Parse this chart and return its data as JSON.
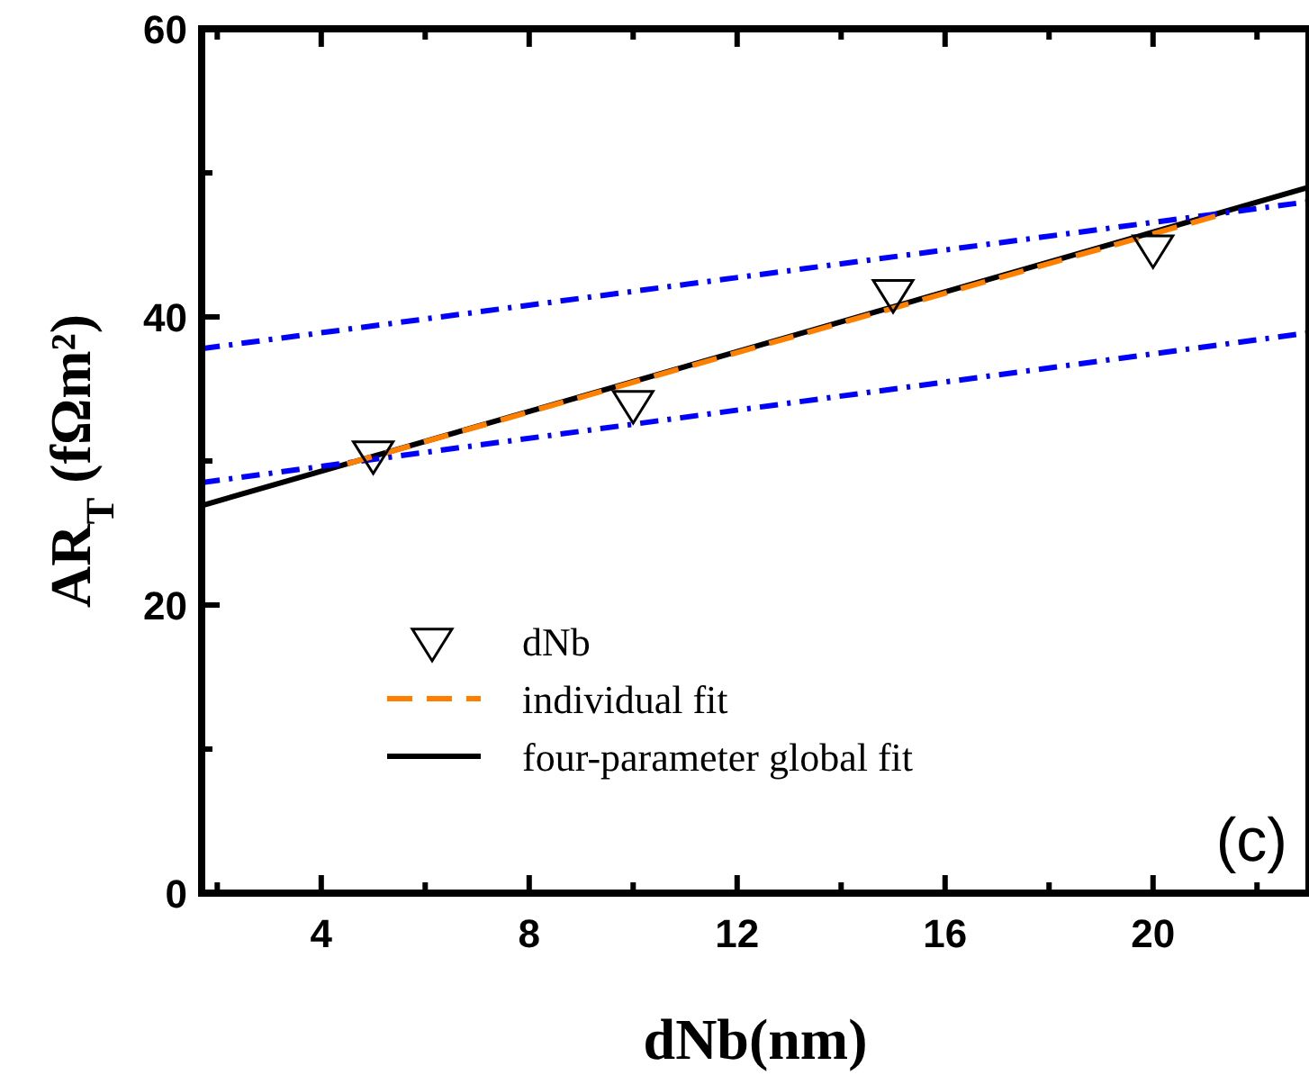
{
  "chart_data": {
    "type": "line",
    "xlabel": "dNb(nm)",
    "ylabel": "AR$_{T}$ (fΩm²)",
    "annotations": [
      "(c)"
    ],
    "xlim": [
      1.7,
      23
    ],
    "ylim": [
      0,
      60
    ],
    "xticks": [
      {
        "value": 2,
        "label": null
      },
      4,
      {
        "value": 6,
        "label": null
      },
      8,
      {
        "value": 10,
        "label": null
      },
      12,
      {
        "value": 14,
        "label": null
      },
      16,
      {
        "value": 18,
        "label": null
      },
      20,
      {
        "value": 22,
        "label": null
      }
    ],
    "yticks": [
      0,
      {
        "value": 10,
        "label": null
      },
      20,
      {
        "value": 30,
        "label": null
      },
      40,
      {
        "value": 50,
        "label": null
      },
      60
    ],
    "grid": false,
    "legend": "bottom left",
    "series": [
      {
        "name": "dNb",
        "type": "scatter",
        "marker": "triangle",
        "color": "#000000",
        "x": [
          5,
          10,
          15,
          20
        ],
        "values": [
          30.5,
          34,
          41.7,
          44.8
        ]
      },
      {
        "name": "individual fit",
        "line_style": "dashed",
        "color": "#ff8000",
        "x": [
          4.5,
          21.2
        ],
        "values": [
          29.8,
          47.0
        ]
      },
      {
        "name": "four-parameter global fit",
        "line_style": "solid",
        "color": "#000000",
        "x": [
          1.7,
          23
        ],
        "values": [
          26.9,
          49.0
        ]
      },
      {
        "line_style": "dotted",
        "color": "#0000ff",
        "x": [
          1.7,
          23
        ],
        "values": [
          37.8,
          48.0
        ]
      },
      {
        "line_style": "dotted",
        "color": "#0000ff",
        "x": [
          1.7,
          23
        ],
        "values": [
          28.5,
          38.9
        ]
      }
    ]
  }
}
